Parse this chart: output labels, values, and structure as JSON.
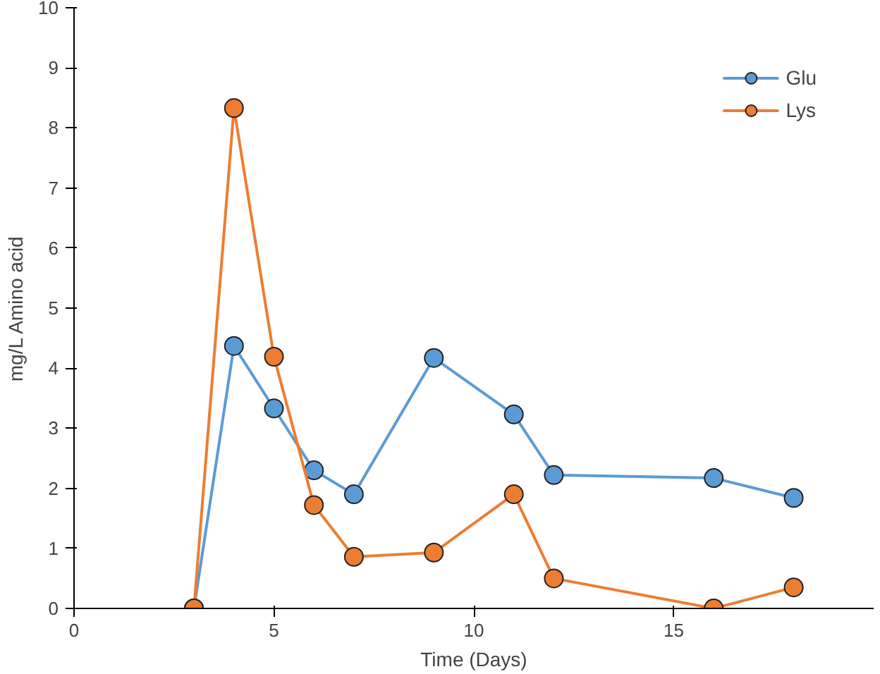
{
  "chart_data": {
    "type": "line",
    "xlabel": "Time (Days)",
    "ylabel": "mg/L Amino acid",
    "x": [
      3,
      4,
      5,
      6,
      7,
      9,
      11,
      12,
      16,
      18
    ],
    "series": [
      {
        "name": "Glu",
        "color": "#5b9bd5",
        "values": [
          0,
          4.37,
          3.33,
          2.3,
          1.9,
          4.17,
          3.23,
          2.22,
          2.17,
          1.84
        ]
      },
      {
        "name": "Lys",
        "color": "#ed7d31",
        "values": [
          0,
          8.33,
          4.19,
          1.72,
          0.86,
          0.93,
          1.9,
          0.5,
          0,
          0.35
        ]
      }
    ],
    "xlim": [
      0,
      20
    ],
    "xticks": [
      0,
      5,
      10,
      15
    ],
    "ylim": [
      0,
      10
    ],
    "yticks": [
      0,
      1,
      2,
      3,
      4,
      5,
      6,
      7,
      8,
      9,
      10
    ],
    "grid": false,
    "legend": "top right",
    "marker": "circle",
    "line_style": "solid"
  }
}
